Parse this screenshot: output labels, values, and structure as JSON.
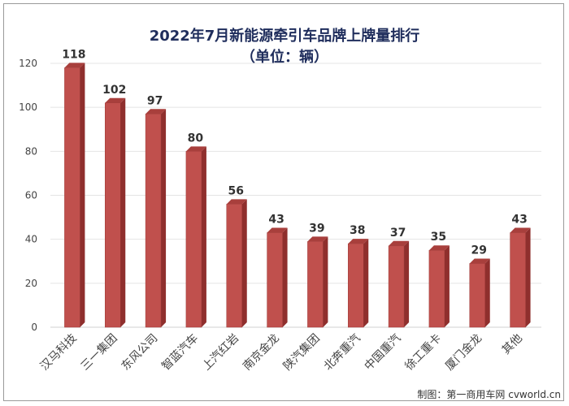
{
  "chart_data": {
    "type": "bar",
    "title": "2022年7月新能源牵引车品牌上牌量排行",
    "subtitle": "（单位：辆）",
    "categories": [
      "汉马科技",
      "三一集团",
      "东风公司",
      "智蓝汽车",
      "上汽红岩",
      "南京金龙",
      "陕汽集团",
      "北奔重汽",
      "中国重汽",
      "徐工重卡",
      "厦门金龙",
      "其他"
    ],
    "values": [
      118,
      102,
      97,
      80,
      56,
      43,
      39,
      38,
      37,
      35,
      29,
      43
    ],
    "ylim": [
      0,
      120
    ],
    "yticks": [
      "0",
      "20",
      "40",
      "60",
      "80",
      "100",
      "120"
    ],
    "grid": true,
    "colors": {
      "bar_front": "#c0504d",
      "bar_side": "#8f2f2d",
      "bar_top": "#a83f3c",
      "grid": "#e4e4e4",
      "label": "#333333"
    }
  },
  "credit": "制图：第一商用车网 cvworld.cn"
}
